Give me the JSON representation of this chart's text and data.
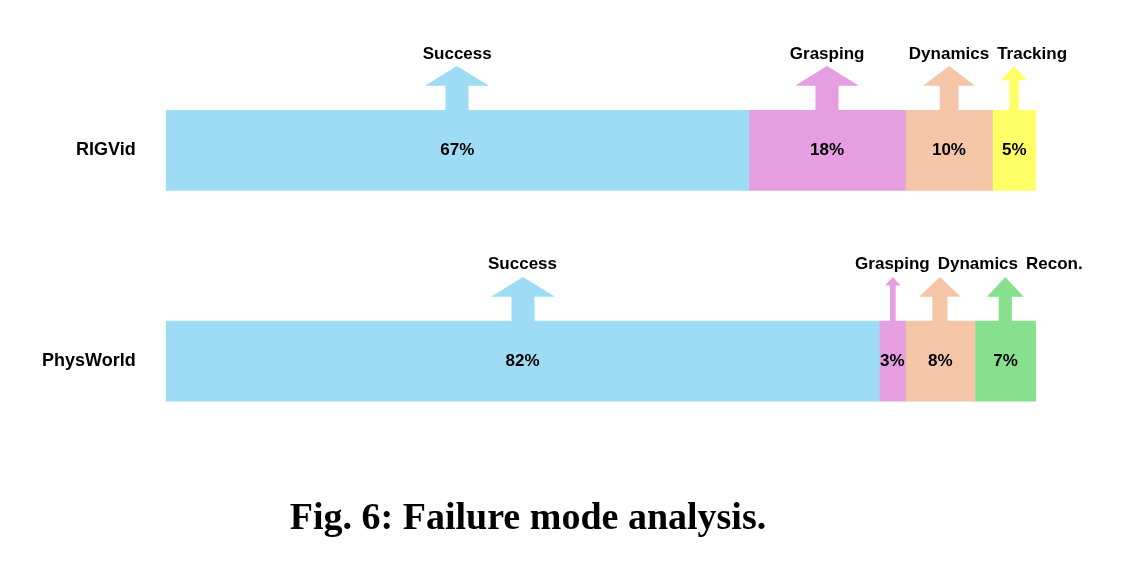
{
  "chart_data": {
    "type": "bar",
    "orientation": "horizontal",
    "stacked": true,
    "title": "Fig. 6: Failure mode analysis.",
    "categories": [
      "RIGVid",
      "PhysWorld"
    ],
    "legend": false,
    "grid": false,
    "series": [
      {
        "name": "Success",
        "color": "#9edcf5",
        "values": [
          67,
          82
        ],
        "value_labels": [
          "67%",
          "82%"
        ]
      },
      {
        "name": "Grasping",
        "color": "#e59ee0",
        "values": [
          18,
          3
        ],
        "value_labels": [
          "18%",
          "3%"
        ]
      },
      {
        "name": "Dynamics",
        "color": "#f5c5a8",
        "values": [
          10,
          8
        ],
        "value_labels": [
          "10%",
          "8%"
        ]
      },
      {
        "name": "Tracking",
        "color": "#ffff66",
        "values": [
          5,
          null
        ],
        "value_labels": [
          "5%",
          null
        ]
      },
      {
        "name": "Recon.",
        "color": "#86e08e",
        "values": [
          null,
          7
        ],
        "value_labels": [
          null,
          "7%"
        ]
      }
    ]
  }
}
